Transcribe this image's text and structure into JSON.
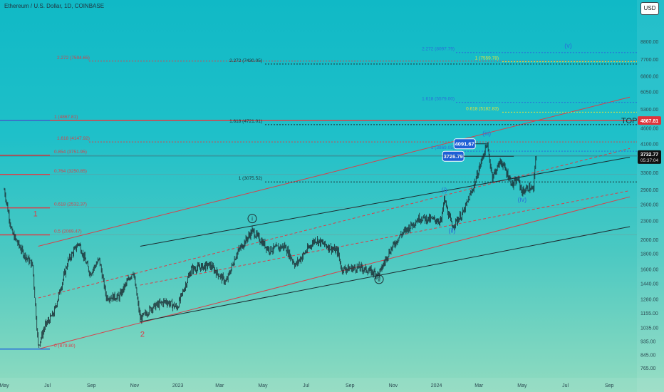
{
  "header": {
    "symbol_title": "Ethereum / U.S. Dollar, 1D, COINBASE",
    "currency_button": "USD"
  },
  "chart_data": {
    "type": "candlestick",
    "title": "Ethereum / U.S. Dollar, 1D, COINBASE",
    "y_scale": "log",
    "ylim": [
      710,
      12000
    ],
    "y_ticks": [
      765,
      845,
      935,
      1035,
      1155,
      1280,
      1440,
      1600,
      1800,
      2000,
      2300,
      2600,
      2900,
      3300,
      3700,
      4100,
      4600,
      5300,
      6050,
      6800,
      7700,
      8800
    ],
    "y_tick_labels": [
      "765.00",
      "845.00",
      "935.00",
      "1035.00",
      "1155.00",
      "1280.00",
      "1440.00",
      "1600.00",
      "1800.00",
      "2000.00",
      "2300.00",
      "2600.00",
      "2900.00",
      "3300.00",
      "3700.00",
      "4100.00",
      "4600.00",
      "5300.00",
      "6050.00",
      "6800.00",
      "7700.00",
      "8800.00"
    ],
    "x_ticks": [
      "May",
      "Jul",
      "Sep",
      "Nov",
      "2023",
      "Mar",
      "May",
      "Jul",
      "Sep",
      "Nov",
      "2024",
      "Mar",
      "May",
      "Jul",
      "Sep"
    ],
    "price_path": [
      [
        "2022-05-01",
        2900
      ],
      [
        "2022-05-12",
        2100
      ],
      [
        "2022-05-28",
        1800
      ],
      [
        "2022-06-10",
        1650
      ],
      [
        "2022-06-18",
        900
      ],
      [
        "2022-06-28",
        1050
      ],
      [
        "2022-07-10",
        1150
      ],
      [
        "2022-07-30",
        1700
      ],
      [
        "2022-08-14",
        1950
      ],
      [
        "2022-08-30",
        1550
      ],
      [
        "2022-09-12",
        1720
      ],
      [
        "2022-09-22",
        1300
      ],
      [
        "2022-10-10",
        1300
      ],
      [
        "2022-10-30",
        1580
      ],
      [
        "2022-11-09",
        1100
      ],
      [
        "2022-11-25",
        1200
      ],
      [
        "2022-12-15",
        1260
      ],
      [
        "2022-12-31",
        1200
      ],
      [
        "2023-01-20",
        1600
      ],
      [
        "2023-02-15",
        1650
      ],
      [
        "2023-03-10",
        1450
      ],
      [
        "2023-03-25",
        1800
      ],
      [
        "2023-04-16",
        2130
      ],
      [
        "2023-05-10",
        1850
      ],
      [
        "2023-06-01",
        1900
      ],
      [
        "2023-06-16",
        1650
      ],
      [
        "2023-07-14",
        2000
      ],
      [
        "2023-08-15",
        1820
      ],
      [
        "2023-08-20",
        1600
      ],
      [
        "2023-09-15",
        1620
      ],
      [
        "2023-10-12",
        1540
      ],
      [
        "2023-10-25",
        1800
      ],
      [
        "2023-11-10",
        2050
      ],
      [
        "2023-12-08",
        2350
      ],
      [
        "2024-01-08",
        2300
      ],
      [
        "2024-01-12",
        2700
      ],
      [
        "2024-01-23",
        2200
      ],
      [
        "2024-02-08",
        2450
      ],
      [
        "2024-02-22",
        2950
      ],
      [
        "2024-03-12",
        4091
      ],
      [
        "2024-03-20",
        3200
      ],
      [
        "2024-04-01",
        3600
      ],
      [
        "2024-04-12",
        3200
      ],
      [
        "2024-04-18",
        3000
      ],
      [
        "2024-04-25",
        3150
      ],
      [
        "2024-05-01",
        2850
      ],
      [
        "2024-05-10",
        2950
      ],
      [
        "2024-05-17",
        2900
      ],
      [
        "2024-05-20",
        3700
      ],
      [
        "2024-05-21",
        3727
      ]
    ],
    "last_price": {
      "value": "3732.77",
      "countdown": "05:37:04"
    },
    "boxed_labels": [
      {
        "text": "4091.67",
        "date": "2024-03-12",
        "price": 4091.67
      },
      {
        "text": "3726.79",
        "date": "2024-03-20",
        "price": 3726.79
      }
    ],
    "price_tags": [
      {
        "text": "4867.81",
        "price": 4867.81,
        "color": "#e0333a"
      }
    ],
    "top_label": "TOP",
    "fib_retracement": {
      "color": "#d8404a",
      "levels": [
        {
          "label": "0 (879.80)",
          "price": 879.8
        },
        {
          "label": "0.5 (2069.47)",
          "price": 2069.47
        },
        {
          "label": "0.618 (2532.37)",
          "price": 2532.37
        },
        {
          "label": "0.764 (3250.85)",
          "price": 3250.85
        },
        {
          "label": "0.854 (3751.95)",
          "price": 3751.95
        },
        {
          "label": "1 (4867.81)",
          "price": 4867.81
        },
        {
          "label": "1.618 (4147.92)",
          "price": 4147.92
        },
        {
          "label": "2.272 (7594.65)",
          "price": 7594.65
        }
      ]
    },
    "fib_ext_black": [
      {
        "label": "2.272 (7430.05)",
        "price": 7430.05
      },
      {
        "label": "1.618 (4721.01)",
        "price": 4721.01
      },
      {
        "label": "1 (3075.52)",
        "price": 3075.52
      }
    ],
    "fib_ext_blue": [
      {
        "label": "2.272 (8097.79)",
        "price": 8097.79
      },
      {
        "label": "1.618 (5579.00)",
        "price": 5579.0
      },
      {
        "label": "1 (3869.05)",
        "price": 3869.05
      }
    ],
    "fib_ext_yellow": [
      {
        "label": "1 (7559.78)",
        "price": 7559.78
      },
      {
        "label": "0.618 (5182.83)",
        "price": 5182.83
      }
    ],
    "wave_labels": [
      {
        "text": "1",
        "date": "2022-06-14",
        "price": 2380,
        "color": "#d8404a",
        "style": "plain"
      },
      {
        "text": "2",
        "date": "2022-11-12",
        "price": 965,
        "color": "#d8404a",
        "style": "plain"
      },
      {
        "text": "i",
        "date": "2023-04-16",
        "price": 2300,
        "color": "#1d2b30",
        "style": "circled"
      },
      {
        "text": "ii",
        "date": "2023-10-12",
        "price": 1460,
        "color": "#1d2b30",
        "style": "circled"
      },
      {
        "text": "(i)",
        "date": "2024-01-12",
        "price": 2850,
        "color": "#2a6fd8",
        "style": "plain"
      },
      {
        "text": "(ii)",
        "date": "2024-01-23",
        "price": 2100,
        "color": "#2a6fd8",
        "style": "plain"
      },
      {
        "text": "(iii)",
        "date": "2024-03-12",
        "price": 4350,
        "color": "#2a6fd8",
        "style": "plain"
      },
      {
        "text": "(iv)",
        "date": "2024-05-01",
        "price": 2650,
        "color": "#2a6fd8",
        "style": "plain"
      },
      {
        "text": "(v)",
        "date": "2024-07-05",
        "price": 8400,
        "color": "#2a6fd8",
        "style": "plain"
      }
    ],
    "channels": [
      {
        "color": "#d8404a",
        "dash": false,
        "p1": [
          "2022-06-18",
          880
        ],
        "p2": [
          "2024-09-30",
          2750
        ]
      },
      {
        "color": "#d8404a",
        "dash": false,
        "p1": [
          "2022-06-18",
          1900
        ],
        "p2": [
          "2024-09-30",
          5800
        ]
      },
      {
        "color": "#d8404a",
        "dash": true,
        "p1": [
          "2022-06-18",
          1290
        ],
        "p2": [
          "2024-09-30",
          3950
        ]
      },
      {
        "color": "#d8404a",
        "dash": true,
        "p1": [
          "2022-11-09",
          1420
        ],
        "p2": [
          "2024-09-30",
          2880
        ]
      },
      {
        "color": "#1d2b30",
        "dash": false,
        "p1": [
          "2022-11-09",
          1080
        ],
        "p2": [
          "2024-09-30",
          2200
        ]
      },
      {
        "color": "#1d2b30",
        "dash": false,
        "p1": [
          "2022-11-09",
          1900
        ],
        "p2": [
          "2024-09-30",
          3700
        ]
      }
    ]
  }
}
